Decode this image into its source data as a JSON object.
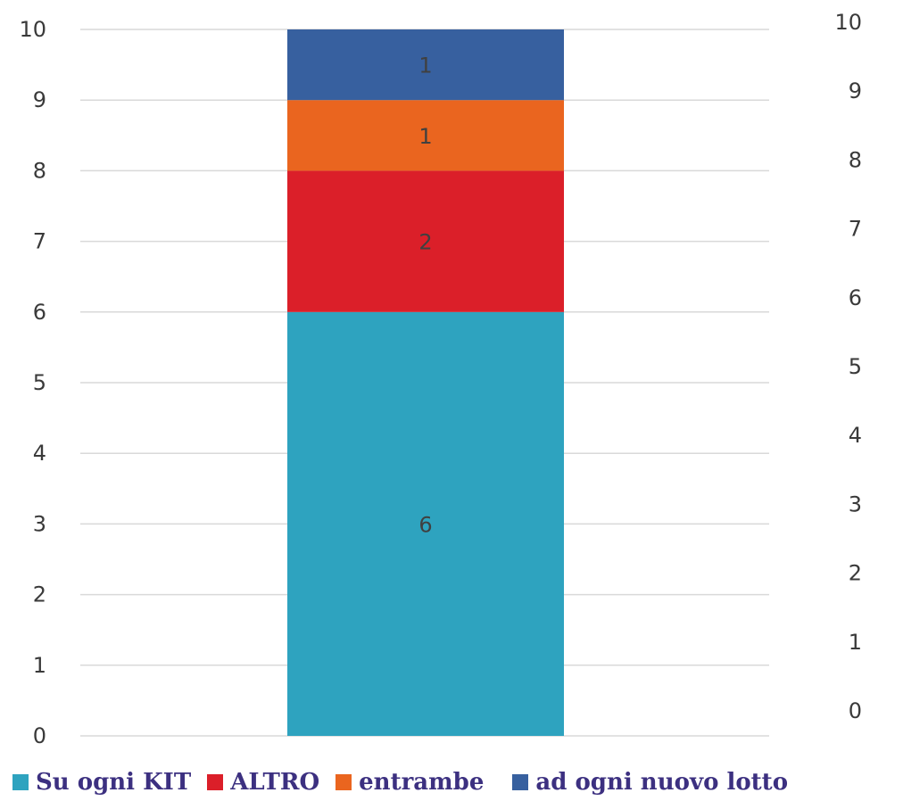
{
  "chart_data": {
    "type": "bar",
    "stacked": true,
    "categories": [
      ""
    ],
    "series": [
      {
        "name": "Su ogni KIT",
        "values": [
          6
        ],
        "color": "#2ea3bf"
      },
      {
        "name": "ALTRO",
        "values": [
          2
        ],
        "color": "#db1f29"
      },
      {
        "name": "entrambe",
        "values": [
          1
        ],
        "color": "#ea651f"
      },
      {
        "name": "ad ogni nuovo lotto",
        "values": [
          1
        ],
        "color": "#37609f"
      }
    ],
    "ylim": [
      0,
      10
    ],
    "y_ticks": [
      "0",
      "1",
      "2",
      "3",
      "4",
      "5",
      "6",
      "7",
      "8",
      "9",
      "10"
    ],
    "secondary_ylim": [
      0,
      10
    ],
    "secondary_y_ticks": [
      "0",
      "1",
      "2",
      "3",
      "4",
      "5",
      "6",
      "7",
      "8",
      "9",
      "10"
    ],
    "data_labels": [
      "6",
      "2",
      "1",
      "1"
    ],
    "grid": true,
    "legend_position": "bottom",
    "gridline_color": "#d9d9d9"
  }
}
